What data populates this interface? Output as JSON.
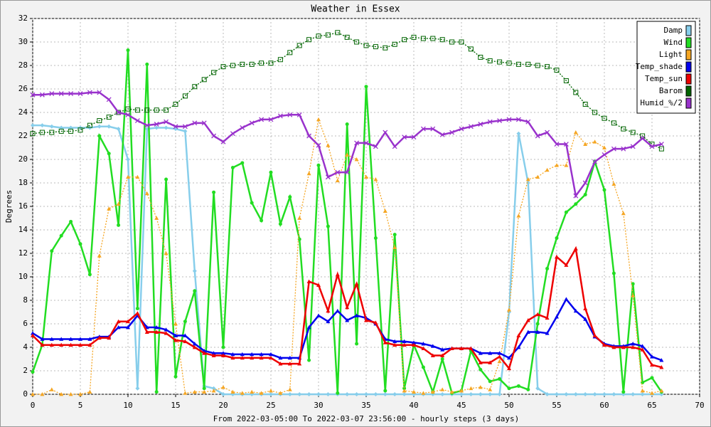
{
  "chart_data": {
    "type": "line",
    "title": "Weather in Essex",
    "y_label": "Degrees",
    "x_label": "From 2022-03-05:00 To 2022-03-07 23:56:00 - hourly steps (3 days)",
    "xlim": [
      0,
      70
    ],
    "xticks": [
      0,
      5,
      10,
      15,
      20,
      25,
      30,
      35,
      40,
      45,
      50,
      55,
      60,
      65,
      70
    ],
    "ylim": [
      0,
      32
    ],
    "yticks": [
      0,
      2,
      4,
      6,
      8,
      10,
      12,
      14,
      16,
      18,
      20,
      22,
      24,
      26,
      28,
      30,
      32
    ],
    "grid": true,
    "legend": "top-right",
    "x": [
      0,
      1,
      2,
      3,
      4,
      5,
      6,
      7,
      8,
      9,
      10,
      11,
      12,
      13,
      14,
      15,
      16,
      17,
      18,
      19,
      20,
      21,
      22,
      23,
      24,
      25,
      26,
      27,
      28,
      29,
      30,
      31,
      32,
      33,
      34,
      35,
      36,
      37,
      38,
      39,
      40,
      41,
      42,
      43,
      44,
      45,
      46,
      47,
      48,
      49,
      50,
      51,
      52,
      53,
      54,
      55,
      56,
      57,
      58,
      59,
      60,
      61,
      62,
      63,
      64,
      65,
      66
    ],
    "series": [
      {
        "name": "Damp",
        "color": "#87ceeb",
        "marker": "diamond",
        "dash": "solid",
        "values": [
          22.9,
          22.9,
          22.8,
          22.7,
          22.7,
          22.7,
          22.7,
          22.8,
          22.8,
          22.6,
          20.0,
          0.5,
          22.6,
          22.7,
          22.7,
          22.6,
          22.4,
          10.5,
          0.7,
          0.5,
          0,
          0,
          0,
          0,
          0,
          0,
          0,
          0,
          0,
          0,
          0,
          0,
          0,
          0,
          0,
          0,
          0,
          0,
          0,
          0,
          0,
          0,
          0,
          0,
          0,
          0,
          0,
          0,
          0,
          0,
          7.0,
          22.2,
          18.0,
          0.5,
          0,
          0,
          0,
          0,
          0,
          0,
          0,
          0,
          0,
          0,
          0,
          0,
          0
        ]
      },
      {
        "name": "Wind",
        "color": "#22dd22",
        "marker": "circle",
        "dash": "solid",
        "values": [
          1.9,
          4.2,
          12.2,
          13.5,
          14.7,
          12.8,
          10.2,
          22.0,
          20.5,
          14.4,
          29.3,
          7.3,
          28.1,
          0.2,
          18.3,
          1.5,
          6.2,
          8.8,
          0.5,
          17.2,
          4.0,
          19.3,
          19.7,
          16.3,
          14.8,
          18.9,
          14.5,
          16.8,
          13.2,
          2.9,
          19.5,
          14.3,
          0.1,
          23.0,
          4.3,
          26.2,
          13.3,
          0.3,
          13.6,
          0.5,
          4.2,
          2.3,
          0.2,
          3.0,
          0.1,
          0.3,
          3.7,
          2.1,
          1.1,
          1.3,
          0.5,
          0.7,
          0.4,
          6.0,
          10.7,
          13.3,
          15.5,
          16.2,
          17.0,
          19.8,
          17.4,
          10.3,
          0.2,
          9.4,
          1.0,
          1.4,
          0.2
        ]
      },
      {
        "name": "Light",
        "color": "#f5a623",
        "marker": "triangle",
        "dash": "dotted",
        "values": [
          0,
          0,
          0.4,
          0,
          0,
          0,
          0.2,
          11.8,
          15.8,
          16.2,
          18.5,
          18.5,
          17.1,
          15.0,
          12.0,
          6.0,
          0.1,
          0.2,
          0.2,
          0.3,
          0.6,
          0.2,
          0.1,
          0.2,
          0.1,
          0.3,
          0.1,
          0.4,
          15.0,
          18.8,
          23.4,
          21.2,
          18.2,
          20.4,
          20.0,
          18.5,
          18.3,
          15.6,
          12.5,
          0.3,
          0.2,
          0.1,
          0.2,
          0.4,
          0.2,
          0.3,
          0.5,
          0.6,
          0.4,
          2.8,
          7.2,
          15.2,
          18.3,
          18.5,
          19.1,
          19.5,
          19.5,
          22.3,
          21.3,
          21.5,
          21.0,
          17.9,
          15.4,
          8.4,
          0.3,
          0.1,
          0.3
        ]
      },
      {
        "name": "Temp_shade",
        "color": "#0000ee",
        "marker": "triangle",
        "dash": "solid",
        "values": [
          5.2,
          4.7,
          4.7,
          4.7,
          4.7,
          4.7,
          4.7,
          4.9,
          4.9,
          5.7,
          5.7,
          6.7,
          5.7,
          5.7,
          5.5,
          5.0,
          5.0,
          4.3,
          3.7,
          3.5,
          3.5,
          3.4,
          3.4,
          3.4,
          3.4,
          3.4,
          3.1,
          3.1,
          3.1,
          5.7,
          6.7,
          6.2,
          7.1,
          6.3,
          6.7,
          6.5,
          6.0,
          4.7,
          4.5,
          4.5,
          4.4,
          4.3,
          4.1,
          3.8,
          3.9,
          3.9,
          3.9,
          3.5,
          3.5,
          3.5,
          3.1,
          4.0,
          5.3,
          5.3,
          5.2,
          6.6,
          8.1,
          7.1,
          6.4,
          4.9,
          4.3,
          4.1,
          4.1,
          4.3,
          4.1,
          3.2,
          2.9
        ]
      },
      {
        "name": "Temp_sun",
        "color": "#ee0000",
        "marker": "triangle",
        "dash": "solid",
        "values": [
          5.0,
          4.2,
          4.2,
          4.2,
          4.2,
          4.2,
          4.2,
          4.8,
          4.8,
          6.2,
          6.2,
          6.9,
          5.3,
          5.3,
          5.2,
          4.6,
          4.5,
          4.0,
          3.5,
          3.3,
          3.3,
          3.1,
          3.1,
          3.1,
          3.1,
          3.1,
          2.6,
          2.6,
          2.6,
          9.6,
          9.3,
          7.1,
          10.2,
          7.4,
          9.4,
          6.3,
          6.1,
          4.4,
          4.2,
          4.2,
          4.2,
          3.9,
          3.3,
          3.3,
          3.9,
          3.9,
          3.9,
          2.7,
          2.7,
          3.2,
          2.2,
          5.0,
          6.3,
          6.8,
          6.5,
          11.7,
          11.0,
          12.4,
          7.3,
          5.0,
          4.2,
          4.0,
          4.0,
          4.0,
          3.8,
          2.5,
          2.3
        ]
      },
      {
        "name": "Barom",
        "color": "#006400",
        "marker": "square",
        "dash": "dotted",
        "values": [
          22.2,
          22.3,
          22.3,
          22.4,
          22.4,
          22.5,
          22.9,
          23.3,
          23.6,
          24.0,
          24.3,
          24.2,
          24.2,
          24.2,
          24.2,
          24.7,
          25.4,
          26.2,
          26.8,
          27.4,
          27.9,
          28.0,
          28.1,
          28.1,
          28.2,
          28.2,
          28.5,
          29.1,
          29.7,
          30.2,
          30.5,
          30.6,
          30.8,
          30.4,
          30.0,
          29.7,
          29.6,
          29.5,
          29.8,
          30.2,
          30.4,
          30.3,
          30.3,
          30.2,
          30.0,
          30.0,
          29.4,
          28.7,
          28.4,
          28.3,
          28.2,
          28.1,
          28.1,
          28.0,
          27.9,
          27.6,
          26.7,
          25.7,
          24.7,
          24.0,
          23.5,
          23.1,
          22.6,
          22.3,
          22.0,
          21.3,
          20.9
        ]
      },
      {
        "name": "Humid_%/2",
        "color": "#9932cc",
        "marker": "cross",
        "dash": "solid",
        "values": [
          25.5,
          25.5,
          25.6,
          25.6,
          25.6,
          25.6,
          25.7,
          25.7,
          25.1,
          24.0,
          23.8,
          23.3,
          22.9,
          23.0,
          23.2,
          22.8,
          22.8,
          23.1,
          23.1,
          22.0,
          21.5,
          22.2,
          22.7,
          23.1,
          23.4,
          23.4,
          23.7,
          23.8,
          23.8,
          22.0,
          21.2,
          18.5,
          18.9,
          18.9,
          21.4,
          21.4,
          21.1,
          22.3,
          21.1,
          21.9,
          21.9,
          22.6,
          22.6,
          22.1,
          22.3,
          22.6,
          22.8,
          23.0,
          23.2,
          23.3,
          23.4,
          23.4,
          23.2,
          22.0,
          22.3,
          21.3,
          21.3,
          16.9,
          18.0,
          19.8,
          20.4,
          20.9,
          20.9,
          21.1,
          21.8,
          21.1,
          21.3
        ]
      }
    ]
  }
}
